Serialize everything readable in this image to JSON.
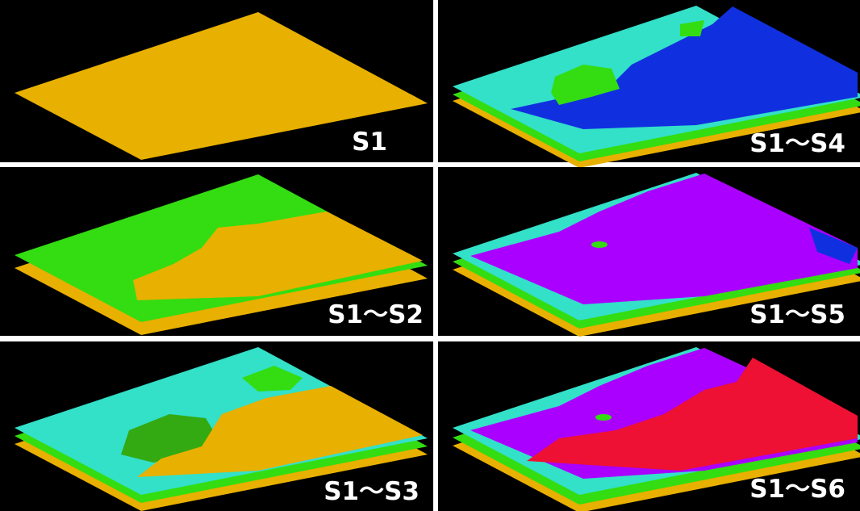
{
  "panels": [
    {
      "label": "S1"
    },
    {
      "label": "S1～S2"
    },
    {
      "label": "S1～S3"
    },
    {
      "label": "S1～S4"
    },
    {
      "label": "S1～S5"
    },
    {
      "label": "S1～S6"
    }
  ]
}
